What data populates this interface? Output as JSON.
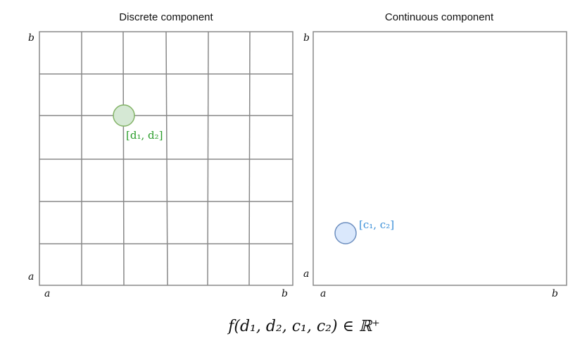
{
  "left_panel": {
    "title": "Discrete component",
    "axis_top": "b",
    "axis_bottom_left": "a",
    "axis_x_left": "a",
    "axis_x_right": "b",
    "point_label": "[d₁, d₂]",
    "point_color": "#2a9d2a",
    "point_fill": "#d5e8d4",
    "point_stroke": "#82b366"
  },
  "right_panel": {
    "title": "Continuous component",
    "axis_top": "b",
    "axis_bottom_left": "a",
    "axis_x_left": "a",
    "axis_x_right": "b",
    "point_label": "[c₁, c₂]",
    "point_color": "#3a8fd8",
    "point_fill": "#dae8fc",
    "point_stroke": "#6c8ebf"
  },
  "formula": "f(d₁, d₂, c₁, c₂) ∈ ℝ⁺"
}
